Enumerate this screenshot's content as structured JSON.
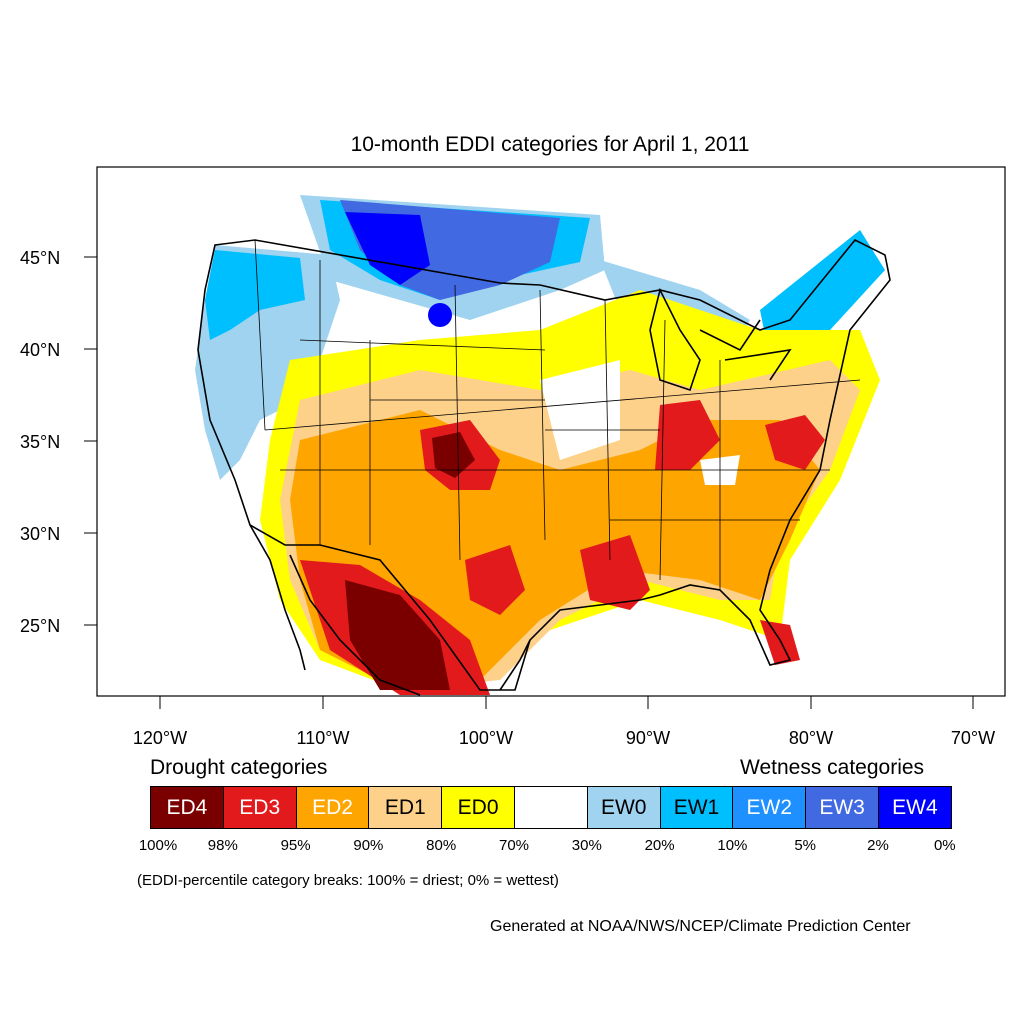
{
  "title": "10-month EDDI categories for April 1, 2011",
  "axes": {
    "lat_labels": [
      "45°N",
      "40°N",
      "35°N",
      "30°N",
      "25°N"
    ],
    "lon_labels": [
      "120°W",
      "110°W",
      "100°W",
      "90°W",
      "80°W",
      "70°W"
    ]
  },
  "legend": {
    "drought_heading": "Drought categories",
    "wetness_heading": "Wetness categories",
    "categories": [
      {
        "label": "ED4",
        "color": "#7a0000",
        "text_color": "#ffffff"
      },
      {
        "label": "ED3",
        "color": "#e31a1c",
        "text_color": "#ffffff"
      },
      {
        "label": "ED2",
        "color": "#ffa500",
        "text_color": "#ffffff"
      },
      {
        "label": "ED1",
        "color": "#fdd18a",
        "text_color": "#000000"
      },
      {
        "label": "ED0",
        "color": "#ffff00",
        "text_color": "#000000"
      },
      {
        "label": "",
        "color": "#ffffff",
        "text_color": "#000000"
      },
      {
        "label": "EW0",
        "color": "#9fd3f0",
        "text_color": "#000000"
      },
      {
        "label": "EW1",
        "color": "#00bfff",
        "text_color": "#000000"
      },
      {
        "label": "EW2",
        "color": "#1e90ff",
        "text_color": "#ffffff"
      },
      {
        "label": "EW3",
        "color": "#4169e1",
        "text_color": "#ffffff"
      },
      {
        "label": "EW4",
        "color": "#0000ff",
        "text_color": "#ffffff"
      }
    ],
    "breaks": [
      "100%",
      "98%",
      "95%",
      "90%",
      "80%",
      "70%",
      "30%",
      "20%",
      "10%",
      "5%",
      "2%",
      "0%"
    ]
  },
  "note": "(EDDI-percentile category breaks: 100% = driest; 0% = wettest)",
  "credit": "Generated at NOAA/NWS/NCEP/Climate Prediction Center"
}
